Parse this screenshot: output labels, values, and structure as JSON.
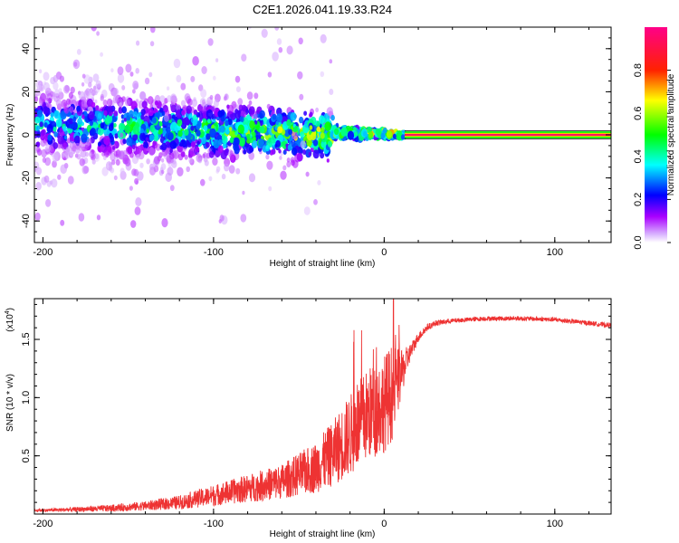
{
  "title": "C2E1.2026.041.19.33.R24",
  "colors": {
    "snr_line": "#ee3333",
    "axis": "#000000",
    "background": "#ffffff"
  },
  "chart_data": [
    {
      "type": "heatmap",
      "name": "spectrogram",
      "xlabel": "Height of straight line (km)",
      "ylabel": "Frequency (Hz)",
      "xlim": [
        -205,
        133
      ],
      "ylim": [
        -50,
        50
      ],
      "xticks": [
        -200,
        -100,
        0,
        100
      ],
      "xtick_labels": [
        "-200",
        "-100",
        "0",
        "100"
      ],
      "yticks": [
        -40,
        -20,
        0,
        20,
        40
      ],
      "ytick_labels": [
        "-40",
        "-20",
        "0",
        "20",
        "40"
      ],
      "colorbar": {
        "label": "Normalized spectral amplitude",
        "range": [
          0,
          1
        ],
        "ticks": [
          0.0,
          0.2,
          0.4,
          0.6,
          0.8
        ],
        "tick_labels": [
          "0.0",
          "0.2",
          "0.4",
          "0.6",
          "0.8"
        ],
        "colormap": [
          "#ffffff",
          "#aa00ff",
          "#0000ff",
          "#00ffff",
          "#00ff00",
          "#ffff00",
          "#ff0000",
          "#ff0088"
        ]
      },
      "structure": [
        {
          "x_range": [
            -205,
            -30
          ],
          "center_hz": 5,
          "spread_hz": 30,
          "amplitude": 0.3,
          "description_key": "diffuse"
        },
        {
          "x_range": [
            -30,
            12
          ],
          "center_hz": 1,
          "spread_hz": 4,
          "amplitude": 0.85,
          "description_key": "converging"
        },
        {
          "x_range": [
            12,
            133
          ],
          "center_hz": 0,
          "spread_hz": 1,
          "amplitude": 0.95,
          "description_key": "tone"
        }
      ]
    },
    {
      "type": "line",
      "name": "snr",
      "xlabel": "Height of straight line (km)",
      "ylabel": "SNR (10 * v/v)",
      "multiplier": "(x10",
      "multiplier_exp": "4",
      "multiplier_close": ")",
      "xlim": [
        -205,
        133
      ],
      "ylim": [
        0,
        1.85
      ],
      "xticks": [
        -200,
        -100,
        0,
        100
      ],
      "xtick_labels": [
        "-200",
        "-100",
        "0",
        "100"
      ],
      "yticks": [
        0.5,
        1.0,
        1.5
      ],
      "ytick_labels": [
        "0.5",
        "1.0",
        "1.5"
      ],
      "series": [
        {
          "name": "SNR",
          "x": [
            -205,
            -180,
            -160,
            -140,
            -120,
            -100,
            -80,
            -60,
            -40,
            -30,
            -20,
            -10,
            0,
            5,
            10,
            15,
            20,
            25,
            30,
            40,
            60,
            80,
            100,
            120,
            133
          ],
          "y": [
            0.03,
            0.04,
            0.05,
            0.07,
            0.1,
            0.16,
            0.22,
            0.28,
            0.4,
            0.52,
            0.68,
            0.85,
            0.95,
            1.05,
            1.2,
            1.38,
            1.52,
            1.6,
            1.64,
            1.66,
            1.68,
            1.68,
            1.67,
            1.64,
            1.62
          ],
          "noise": [
            0.01,
            0.02,
            0.03,
            0.04,
            0.06,
            0.09,
            0.12,
            0.15,
            0.22,
            0.28,
            0.35,
            0.4,
            0.42,
            0.42,
            0.2,
            0.08,
            0.04,
            0.03,
            0.025,
            0.02,
            0.02,
            0.02,
            0.02,
            0.02,
            0.02
          ]
        }
      ]
    }
  ]
}
